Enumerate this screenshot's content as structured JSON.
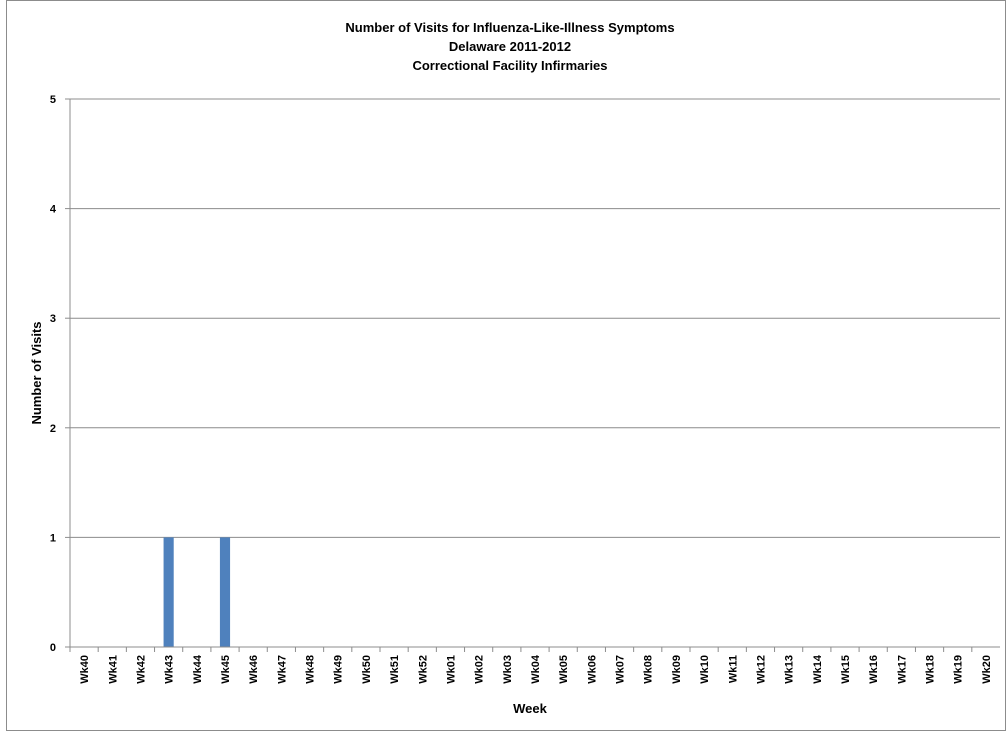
{
  "chart_data": {
    "type": "bar",
    "title": [
      "Number of Visits for Influenza-Like-Illness Symptoms",
      "Delaware 2011-2012",
      "Correctional Facility Infirmaries"
    ],
    "xlabel": "Week",
    "ylabel": "Number of Visits",
    "ylim": [
      0,
      5
    ],
    "yticks": [
      "0",
      "1",
      "2",
      "3",
      "4",
      "5"
    ],
    "grid": true,
    "legend": "none",
    "bar_color": "#4f81bd",
    "categories": [
      "Wk40",
      "Wk41",
      "Wk42",
      "Wk43",
      "Wk44",
      "Wk45",
      "Wk46",
      "Wk47",
      "Wk48",
      "Wk49",
      "Wk50",
      "Wk51",
      "Wk52",
      "Wk01",
      "Wk02",
      "Wk03",
      "Wk04",
      "Wk05",
      "Wk06",
      "Wk07",
      "Wk08",
      "Wk09",
      "Wk10",
      "Wk11",
      "Wk12",
      "Wk13",
      "Wk14",
      "Wk15",
      "Wk16",
      "Wk17",
      "Wk18",
      "Wk19",
      "Wk20"
    ],
    "values": [
      0,
      0,
      0,
      1,
      0,
      1,
      0,
      0,
      0,
      0,
      0,
      0,
      0,
      0,
      0,
      0,
      0,
      0,
      0,
      0,
      0,
      0,
      0,
      0,
      0,
      0,
      0,
      0,
      0,
      0,
      0,
      0,
      0
    ]
  }
}
